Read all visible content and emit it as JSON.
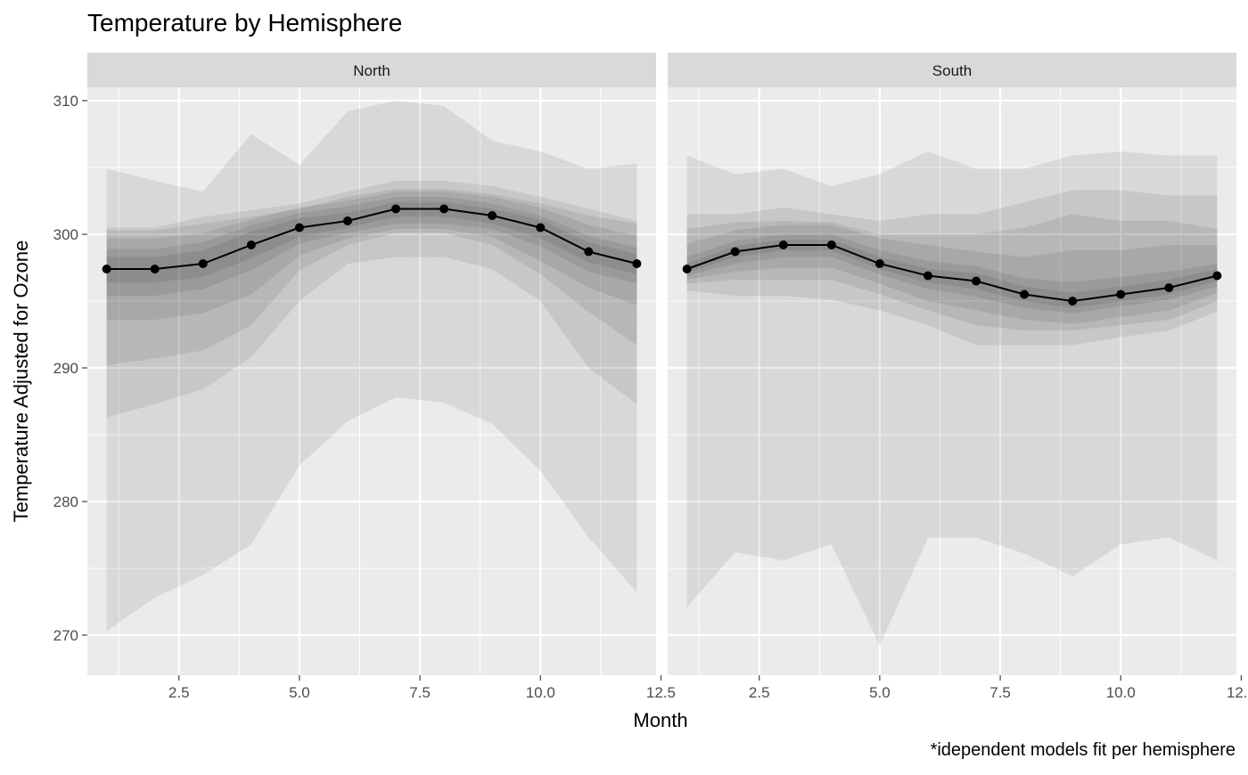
{
  "chart_data": {
    "type": "line",
    "title": "Temperature by Hemisphere",
    "xlabel": "Month",
    "ylabel": "Temperature Adjusted for Ozone",
    "caption": "*idependent models fit per hemisphere",
    "xlim": [
      0.6,
      12.4
    ],
    "ylim": [
      267,
      311
    ],
    "x_ticks": [
      2.5,
      5.0,
      7.5,
      10.0,
      12.5
    ],
    "x_tick_labels": [
      "2.5",
      "5.0",
      "7.5",
      "10.0",
      "12.5"
    ],
    "y_ticks": [
      270,
      280,
      290,
      300,
      310
    ],
    "y_tick_labels": [
      "270",
      "280",
      "290",
      "300",
      "310"
    ],
    "grid": true,
    "panels": [
      {
        "name": "North",
        "x": [
          1,
          2,
          3,
          4,
          5,
          6,
          7,
          8,
          9,
          10,
          11,
          12
        ],
        "values": [
          297.4,
          297.4,
          297.8,
          299.2,
          300.5,
          301.0,
          301.9,
          301.9,
          301.4,
          300.5,
          298.7,
          297.8
        ],
        "bands": [
          {
            "lower": [
              270.3,
              272.8,
              274.5,
              276.8,
              282.7,
              286.0,
              287.8,
              287.4,
              285.8,
              282.3,
              277.3,
              273.2
            ],
            "upper": [
              304.9,
              304.0,
              303.2,
              307.5,
              305.2,
              309.2,
              310.0,
              309.6,
              307.0,
              306.2,
              304.9,
              305.3
            ]
          },
          {
            "lower": [
              286.3,
              287.3,
              288.4,
              290.8,
              295.0,
              297.8,
              298.3,
              298.3,
              297.4,
              295.0,
              290.0,
              287.3
            ],
            "upper": [
              300.3,
              300.3,
              300.8,
              301.3,
              301.9,
              302.8,
              303.4,
              303.4,
              303.0,
              302.3,
              301.4,
              300.8
            ]
          },
          {
            "lower": [
              290.2,
              290.7,
              291.3,
              293.2,
              297.3,
              299.2,
              300.1,
              300.1,
              299.2,
              297.0,
              294.2,
              291.7
            ],
            "upper": [
              300.5,
              300.5,
              301.3,
              301.8,
              302.3,
              303.2,
              304.0,
              304.0,
              303.6,
              302.8,
              301.9,
              301.0
            ]
          },
          {
            "lower": [
              293.6,
              293.6,
              294.1,
              295.5,
              298.4,
              299.7,
              300.4,
              300.4,
              299.8,
              298.0,
              296.0,
              294.7
            ],
            "upper": [
              299.7,
              299.7,
              300.1,
              301.1,
              302.0,
              302.5,
              303.2,
              303.2,
              302.8,
              302.0,
              300.7,
              299.9
            ]
          },
          {
            "lower": [
              295.4,
              295.4,
              295.9,
              297.3,
              299.3,
              300.1,
              300.8,
              300.8,
              300.4,
              299.1,
              297.2,
              296.3
            ],
            "upper": [
              298.9,
              298.9,
              299.4,
              300.7,
              301.6,
              302.1,
              302.8,
              302.8,
              302.3,
              301.4,
              299.9,
              299.0
            ]
          },
          {
            "lower": [
              296.4,
              296.4,
              296.8,
              298.2,
              299.8,
              300.5,
              301.3,
              301.3,
              300.8,
              299.7,
              297.9,
              297.0
            ],
            "upper": [
              298.3,
              298.3,
              298.8,
              300.2,
              301.2,
              301.6,
              302.4,
              302.4,
              301.9,
              301.1,
              299.4,
              298.5
            ]
          }
        ]
      },
      {
        "name": "South",
        "x": [
          1,
          2,
          3,
          4,
          5,
          6,
          7,
          8,
          9,
          10,
          11,
          12
        ],
        "values": [
          297.4,
          298.7,
          299.2,
          299.2,
          297.8,
          296.9,
          296.5,
          295.5,
          295.0,
          295.5,
          296.0,
          296.9
        ],
        "bands": [
          {
            "lower": [
              272.1,
              276.2,
              275.6,
              276.8,
              269.2,
              277.3,
              277.3,
              276.1,
              274.4,
              276.8,
              277.3,
              275.6
            ],
            "upper": [
              305.9,
              304.5,
              304.9,
              303.6,
              304.5,
              306.2,
              304.9,
              304.9,
              305.9,
              306.2,
              305.9,
              305.9
            ]
          },
          {
            "lower": [
              295.8,
              295.4,
              295.4,
              295.1,
              294.3,
              293.2,
              291.7,
              291.7,
              291.7,
              292.3,
              292.8,
              294.2
            ],
            "upper": [
              301.5,
              301.5,
              302.0,
              301.5,
              301.0,
              301.5,
              301.5,
              302.4,
              303.3,
              303.3,
              302.9,
              302.9
            ]
          },
          {
            "lower": [
              296.3,
              296.6,
              296.6,
              296.6,
              295.5,
              294.3,
              293.2,
              292.8,
              292.8,
              293.2,
              293.6,
              295.0
            ],
            "upper": [
              300.4,
              300.9,
              301.0,
              300.9,
              300.0,
              300.0,
              300.0,
              300.5,
              301.5,
              301.0,
              301.0,
              300.4
            ]
          },
          {
            "lower": [
              296.6,
              297.2,
              297.5,
              297.5,
              296.3,
              295.0,
              294.3,
              293.6,
              293.3,
              293.8,
              294.3,
              295.6
            ],
            "upper": [
              299.3,
              300.3,
              300.7,
              300.7,
              299.7,
              299.2,
              298.7,
              298.3,
              298.8,
              298.8,
              299.2,
              299.2
            ]
          },
          {
            "lower": [
              296.9,
              297.8,
              298.3,
              298.3,
              297.0,
              295.9,
              295.3,
              294.5,
              294.1,
              294.6,
              295.1,
              296.1
            ],
            "upper": [
              298.3,
              299.5,
              300.0,
              300.0,
              298.8,
              298.0,
              297.6,
              296.7,
              296.4,
              296.8,
              297.2,
              297.8
            ]
          },
          {
            "lower": [
              297.1,
              298.3,
              298.8,
              298.8,
              297.4,
              296.4,
              295.9,
              295.0,
              294.5,
              295.0,
              295.5,
              296.5
            ],
            "upper": [
              297.8,
              299.1,
              299.6,
              299.6,
              298.3,
              297.4,
              297.1,
              296.1,
              295.6,
              296.1,
              296.6,
              297.4
            ]
          }
        ]
      }
    ]
  }
}
